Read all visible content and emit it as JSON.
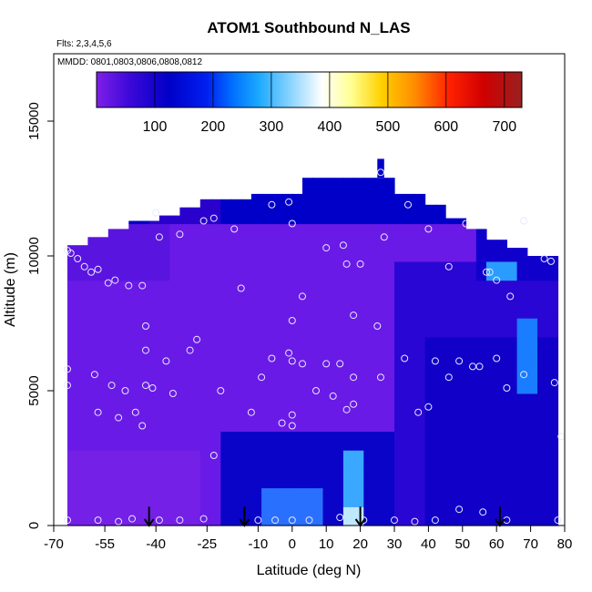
{
  "chart_data": {
    "type": "heatmap",
    "title": "ATOM1 Southbound N_LAS",
    "subtitle_flights": "Flts: 2,3,4,5,6",
    "subtitle_dates": "MMDD: 0801,0803,0806,0808,0812",
    "xlabel": "Latitude (deg N)",
    "ylabel": "Altitude (m)",
    "xlim": [
      -70,
      80
    ],
    "ylim": [
      0,
      17500
    ],
    "x_ticks": [
      -70,
      -55,
      -40,
      -25,
      -10,
      0,
      10,
      20,
      30,
      40,
      50,
      60,
      70,
      80
    ],
    "x_tick_labels": [
      "-70",
      "-55",
      "-40",
      "-25",
      "-10",
      "0",
      "10",
      "20",
      "30",
      "40",
      "50",
      "60",
      "70",
      "80"
    ],
    "y_ticks": [
      0,
      5000,
      10000,
      15000
    ],
    "y_tick_labels": [
      "0",
      "5000",
      "10000",
      "15000"
    ],
    "colorbar": {
      "range": [
        0,
        730
      ],
      "ticks": [
        100,
        200,
        300,
        400,
        500,
        600,
        700
      ],
      "tick_labels": [
        "100",
        "200",
        "300",
        "400",
        "500",
        "600",
        "700"
      ],
      "colors": [
        "#7f1fe8",
        "#2a00d4",
        "#0000c8",
        "#0030ff",
        "#1aa0ff",
        "#7fcfff",
        "#ffffff",
        "#ffffb0",
        "#ffd400",
        "#ff8000",
        "#ff1a00",
        "#cc0000",
        "#9a2020"
      ]
    },
    "surface_arrows_latitude": [
      -42,
      -14,
      20,
      61
    ],
    "observations": [
      {
        "lat": -66,
        "alt": 200
      },
      {
        "lat": -57,
        "alt": 200
      },
      {
        "lat": -51,
        "alt": 150
      },
      {
        "lat": -47,
        "alt": 250
      },
      {
        "lat": -39,
        "alt": 200
      },
      {
        "lat": -33,
        "alt": 200
      },
      {
        "lat": -26,
        "alt": 250
      },
      {
        "lat": -10,
        "alt": 200
      },
      {
        "lat": -5,
        "alt": 200
      },
      {
        "lat": 0,
        "alt": 200
      },
      {
        "lat": 5,
        "alt": 200
      },
      {
        "lat": 14,
        "alt": 300
      },
      {
        "lat": 21,
        "alt": 200
      },
      {
        "lat": 30,
        "alt": 200
      },
      {
        "lat": 36,
        "alt": 150
      },
      {
        "lat": 42,
        "alt": 200
      },
      {
        "lat": 49,
        "alt": 600
      },
      {
        "lat": 56,
        "alt": 500
      },
      {
        "lat": 63,
        "alt": 200
      },
      {
        "lat": 78,
        "alt": 200
      },
      {
        "lat": -66,
        "alt": 5800
      },
      {
        "lat": -66,
        "alt": 5200
      },
      {
        "lat": -58,
        "alt": 5600
      },
      {
        "lat": -57,
        "alt": 4200
      },
      {
        "lat": -53,
        "alt": 5200
      },
      {
        "lat": -51,
        "alt": 4000
      },
      {
        "lat": -49,
        "alt": 5000
      },
      {
        "lat": -46,
        "alt": 4200
      },
      {
        "lat": -44,
        "alt": 3700
      },
      {
        "lat": -43,
        "alt": 5200
      },
      {
        "lat": -41,
        "alt": 5100
      },
      {
        "lat": -37,
        "alt": 6100
      },
      {
        "lat": -35,
        "alt": 4900
      },
      {
        "lat": -30,
        "alt": 6500
      },
      {
        "lat": -28,
        "alt": 6900
      },
      {
        "lat": -23,
        "alt": 2600
      },
      {
        "lat": -21,
        "alt": 5000
      },
      {
        "lat": -12,
        "alt": 4200
      },
      {
        "lat": -9,
        "alt": 5500
      },
      {
        "lat": -6,
        "alt": 6200
      },
      {
        "lat": -3,
        "alt": 3800
      },
      {
        "lat": -1,
        "alt": 6400
      },
      {
        "lat": 0,
        "alt": 6100
      },
      {
        "lat": 0,
        "alt": 4100
      },
      {
        "lat": 0,
        "alt": 3700
      },
      {
        "lat": 3,
        "alt": 6000
      },
      {
        "lat": 7,
        "alt": 5000
      },
      {
        "lat": 10,
        "alt": 6000
      },
      {
        "lat": 12,
        "alt": 4800
      },
      {
        "lat": 14,
        "alt": 6000
      },
      {
        "lat": 16,
        "alt": 4300
      },
      {
        "lat": 18,
        "alt": 4500
      },
      {
        "lat": 18,
        "alt": 5500
      },
      {
        "lat": 26,
        "alt": 5500
      },
      {
        "lat": 33,
        "alt": 6200
      },
      {
        "lat": 37,
        "alt": 4200
      },
      {
        "lat": 40,
        "alt": 4400
      },
      {
        "lat": 42,
        "alt": 6100
      },
      {
        "lat": 46,
        "alt": 5500
      },
      {
        "lat": 49,
        "alt": 6100
      },
      {
        "lat": 53,
        "alt": 5900
      },
      {
        "lat": 55,
        "alt": 5900
      },
      {
        "lat": 60,
        "alt": 6200
      },
      {
        "lat": 63,
        "alt": 5100
      },
      {
        "lat": 68,
        "alt": 5600
      },
      {
        "lat": 77,
        "alt": 5300
      },
      {
        "lat": 79,
        "alt": 3300
      },
      {
        "lat": -66,
        "alt": 10200
      },
      {
        "lat": -65,
        "alt": 10100
      },
      {
        "lat": -63,
        "alt": 9900
      },
      {
        "lat": -61,
        "alt": 9600
      },
      {
        "lat": -59,
        "alt": 9400
      },
      {
        "lat": -57,
        "alt": 9500
      },
      {
        "lat": -54,
        "alt": 9000
      },
      {
        "lat": -52,
        "alt": 9100
      },
      {
        "lat": -48,
        "alt": 8900
      },
      {
        "lat": -44,
        "alt": 8900
      },
      {
        "lat": -43,
        "alt": 7400
      },
      {
        "lat": -43,
        "alt": 6500
      },
      {
        "lat": -39,
        "alt": 10700
      },
      {
        "lat": -33,
        "alt": 10800
      },
      {
        "lat": -26,
        "alt": 11300
      },
      {
        "lat": -23,
        "alt": 11400
      },
      {
        "lat": -17,
        "alt": 11000
      },
      {
        "lat": -15,
        "alt": 8800
      },
      {
        "lat": -6,
        "alt": 11900
      },
      {
        "lat": -1,
        "alt": 12000
      },
      {
        "lat": 0,
        "alt": 11200
      },
      {
        "lat": 3,
        "alt": 8500
      },
      {
        "lat": 0,
        "alt": 7600
      },
      {
        "lat": 10,
        "alt": 10300
      },
      {
        "lat": 15,
        "alt": 10400
      },
      {
        "lat": 16,
        "alt": 9700
      },
      {
        "lat": 20,
        "alt": 9700
      },
      {
        "lat": 18,
        "alt": 7800
      },
      {
        "lat": 25,
        "alt": 7400
      },
      {
        "lat": 27,
        "alt": 10700
      },
      {
        "lat": 34,
        "alt": 11900
      },
      {
        "lat": 40,
        "alt": 11000
      },
      {
        "lat": 46,
        "alt": 9600
      },
      {
        "lat": 51,
        "alt": 11200
      },
      {
        "lat": 57,
        "alt": 9400
      },
      {
        "lat": 58,
        "alt": 9400
      },
      {
        "lat": 60,
        "alt": 9100
      },
      {
        "lat": 64,
        "alt": 8500
      },
      {
        "lat": 68,
        "alt": 11300
      },
      {
        "lat": 74,
        "alt": 9900
      },
      {
        "lat": 76,
        "alt": 9800
      },
      {
        "lat": -40,
        "alt": 11600
      },
      {
        "lat": 26,
        "alt": 13100
      }
    ]
  }
}
